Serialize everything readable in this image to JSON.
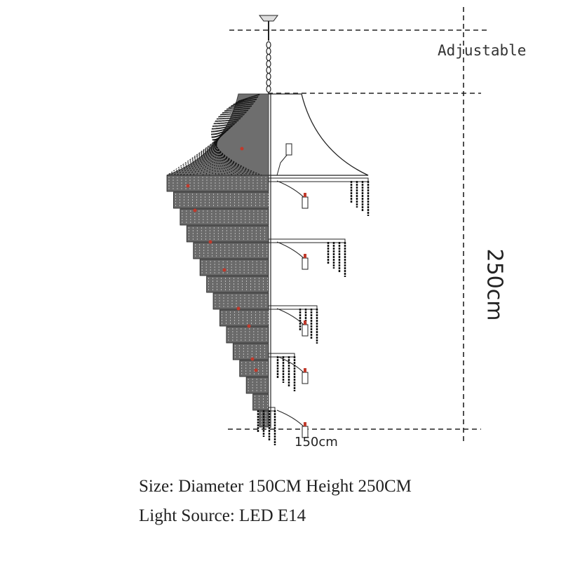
{
  "diagram": {
    "subject": "chandelier",
    "adjustable_label": "Adjustable",
    "height_label": "250cm",
    "width_label": "150cm"
  },
  "specs": {
    "size": "Size: Diameter 150CM Height 250CM",
    "light_source": "Light Source: LED E14"
  },
  "colors": {
    "line": "#222222",
    "bulb_tint": "#c0392b"
  }
}
